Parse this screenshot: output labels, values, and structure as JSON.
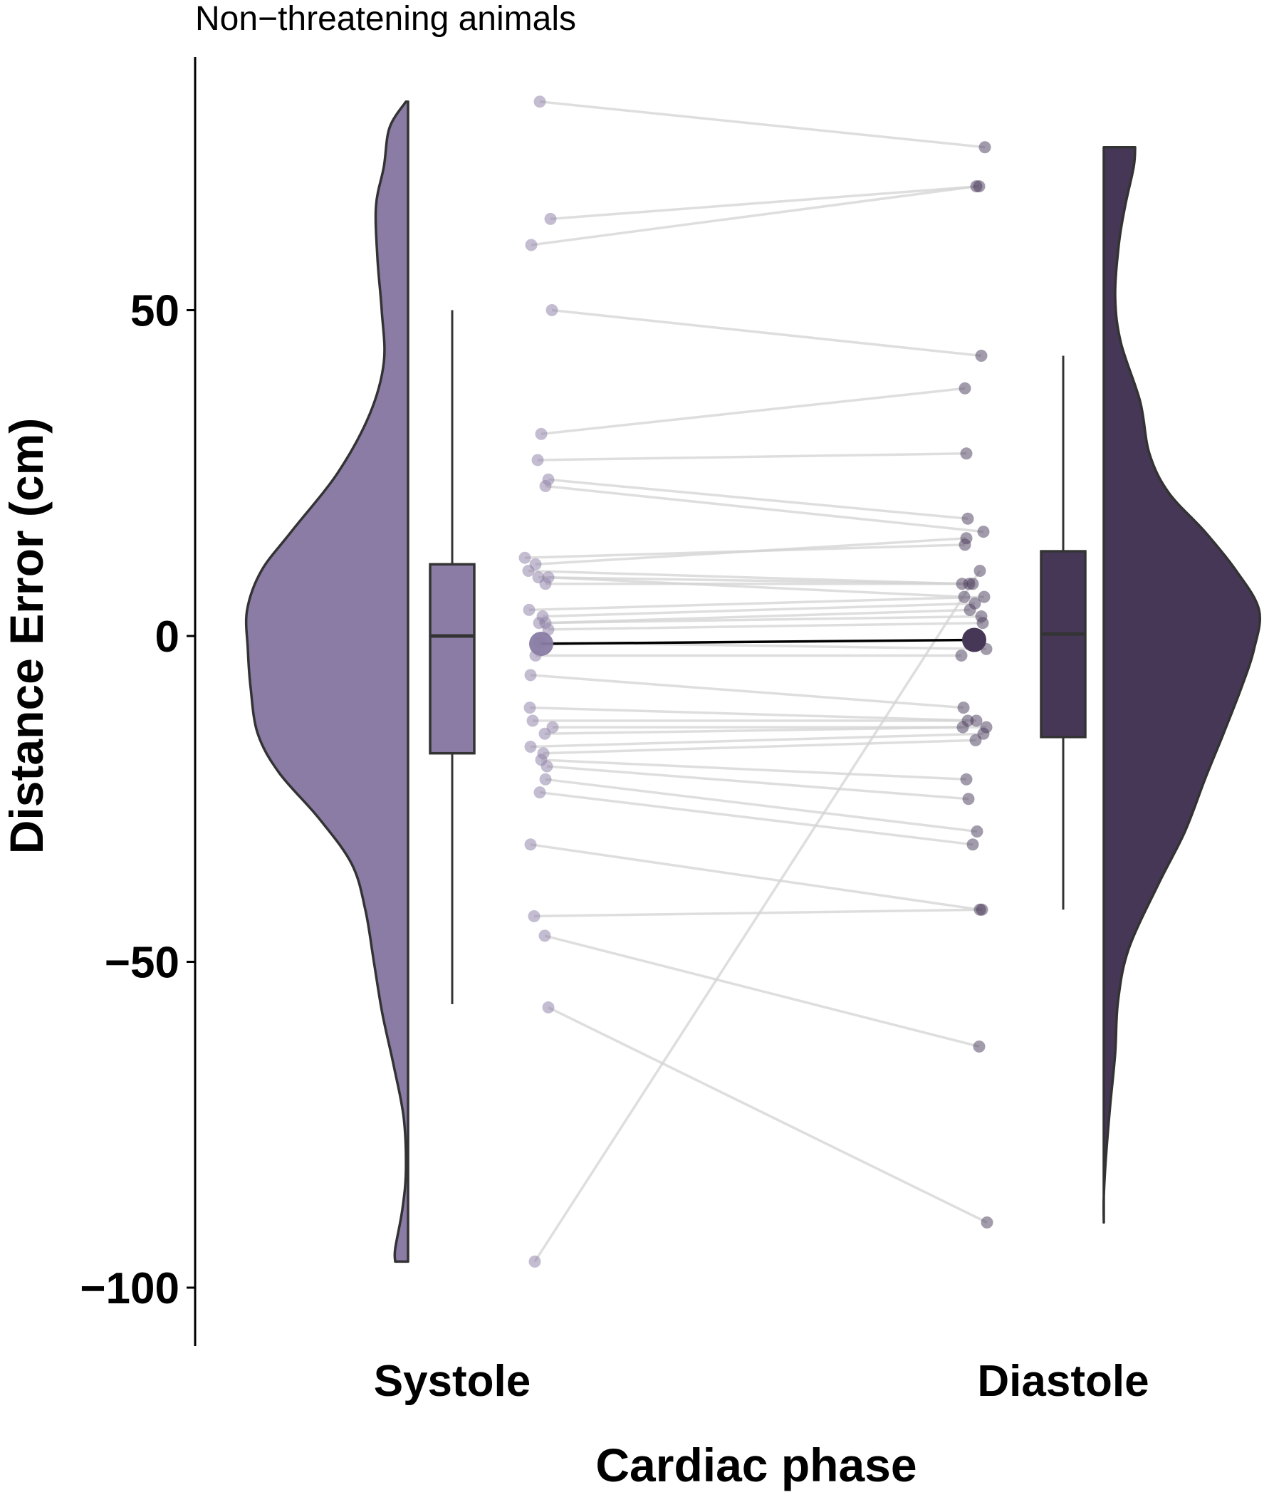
{
  "chart_data": {
    "type": "raincloud",
    "title": "Non−threatening animals",
    "xlabel": "Cardiac phase",
    "ylabel": "Distance Error (cm)",
    "ylim": [
      -109,
      89
    ],
    "yticks": [
      50,
      0,
      -50,
      -100
    ],
    "ytick_labels": [
      "50",
      "0",
      "−50",
      "−100"
    ],
    "categories": [
      "Systole",
      "Diastole"
    ],
    "colors": {
      "Systole": "#8a7ca4",
      "Diastole": "#463757",
      "outline": "#333333",
      "pair_line": "#d3d3d3",
      "mean_line": "#000000"
    },
    "box": {
      "Systole": {
        "whisker_low": -56.5,
        "q1": -18,
        "median": 0,
        "q3": 11,
        "whisker_high": 50
      },
      "Diastole": {
        "whisker_low": -42,
        "q1": -15.5,
        "median": 0.3,
        "q3": 13,
        "whisker_high": 43
      }
    },
    "means": {
      "Systole": -1.2,
      "Diastole": -0.6
    },
    "systole": [
      82,
      64,
      60,
      50,
      31,
      27,
      24,
      23,
      12,
      11,
      10,
      9,
      8,
      9,
      4,
      3,
      2,
      2,
      1,
      -1,
      -3,
      -6,
      -11,
      -13,
      -14,
      -15,
      -17,
      -18,
      -19,
      -20,
      -22,
      -24,
      -32,
      -43,
      -46,
      -57,
      -96
    ],
    "diastole": [
      75,
      69,
      69,
      43,
      38,
      28,
      18,
      16,
      14,
      15,
      8,
      8,
      8,
      6,
      6,
      5,
      4,
      3,
      2,
      -2,
      -3,
      -11,
      -13,
      -13,
      -14,
      -14,
      -15,
      -16,
      -22,
      -25,
      -30,
      -32,
      -42,
      -42,
      -63,
      -90,
      10
    ]
  }
}
